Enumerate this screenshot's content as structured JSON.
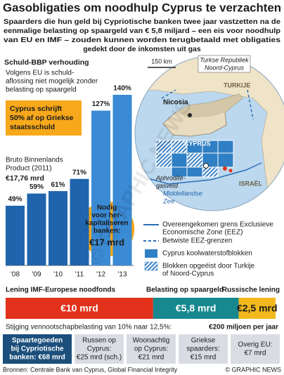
{
  "header": {
    "title": "Gasobligaties om noodhulp Cyprus te verzachten",
    "subtitle": [
      "Spaarders die hun geld bij Cypriotische banken twee jaar vastzetten na de",
      "eenmalige belasting op spaargeld van € 5,8 miljard – een eis voor noodhulp",
      "van EU en IMF – zouden kunnen worden terugbetaald met obligaties",
      "gedekt door de inkomsten uit gas"
    ]
  },
  "chart_data": [
    {
      "type": "bar",
      "title": "Schuld-BBP verhouding",
      "categories": [
        "'08",
        "'09",
        "'10",
        "'11",
        "'12",
        "'13"
      ],
      "values": [
        49,
        59,
        61,
        71,
        127,
        140
      ],
      "value_labels": [
        "49%",
        "59%",
        "61%",
        "71%",
        "127%",
        "140%"
      ],
      "colors": [
        "#1f64ad",
        "#1f64ad",
        "#1f64ad",
        "#1f64ad",
        "#3b8ad4",
        "#3b8ad4"
      ],
      "ylim": [
        0,
        140
      ],
      "annotations": {
        "eu_note": [
          "Volgens EU is schuld-",
          "aflossing niet mogelijk zonder",
          "belasting op spaargeld"
        ],
        "writeoff": [
          "Cyprus schrijft",
          "50% af op Griekse",
          "staatsschuld"
        ],
        "gdp_label": [
          "Bruto Binnenlands",
          "Product (2011)"
        ],
        "gdp_value": "€17,76 mrd",
        "recap": [
          "Nodig",
          "voor her-",
          "kapitaliseren",
          "banken:"
        ],
        "recap_value": "€17 mrd"
      }
    },
    {
      "type": "stacked-hbar",
      "series": [
        {
          "name": "Lening IMF-Europese noodfonds",
          "color": "#e2321b",
          "values": [
            10
          ],
          "value_labels": [
            "€10 mrd"
          ]
        },
        {
          "name": "Belasting op spaargeld",
          "color": "#16888e",
          "values": [
            5.8
          ],
          "value_labels": [
            "€5,8 mrd"
          ]
        },
        {
          "name": "Russische lening",
          "color": "#f2b81c",
          "values": [
            2.5
          ],
          "value_labels": [
            "€2,5 mrd"
          ]
        }
      ],
      "xlim": [
        0,
        18.3
      ],
      "note": "Stijging vennootschapbelasting van 10% naar 12,5%:",
      "note_value": "€200 miljoen per jaar"
    }
  ],
  "map": {
    "scale": "150 km",
    "trnc": [
      "Turkse Republiek",
      "Noord-Cyprus"
    ],
    "turkey": "TURKIJE",
    "nicosia": "Nicosia",
    "cyprus": "CYPRUS",
    "field": [
      "Aphrodite-",
      "gasveld"
    ],
    "sea": [
      "Middellandse",
      "Zee"
    ],
    "israel": "ISRAËL"
  },
  "legend": [
    [
      "Overeengekomen grens Exclusieve",
      "Economische Zone (EEZ)"
    ],
    [
      "Betwiste EEZ-grenzen"
    ],
    [
      "Cyprus koolwaterstofblokken"
    ],
    [
      "Blokken opgeëist door Turkije",
      "of Noord-Cyprus"
    ]
  ],
  "deposits": {
    "total": [
      "Spaartegoeden",
      "bij Cypriotische",
      "banken: €68 mrd"
    ],
    "items": [
      [
        "Russen op",
        "Cyprus:",
        "€25 mrd (sch.)"
      ],
      [
        "Woonachtig",
        "op Cyprus:",
        "€21 mrd"
      ],
      [
        "Griekse",
        "spaarders:",
        "€15 mrd"
      ],
      [
        "Overig EU:",
        "€7 mrd"
      ]
    ]
  },
  "footer": {
    "source": "Bronnen: Centrale Bank van Cyprus, Global Financial Integrity",
    "credit": "© GRAPHIC NEWS",
    "watermark": "© GRAPHIC NEWS"
  }
}
